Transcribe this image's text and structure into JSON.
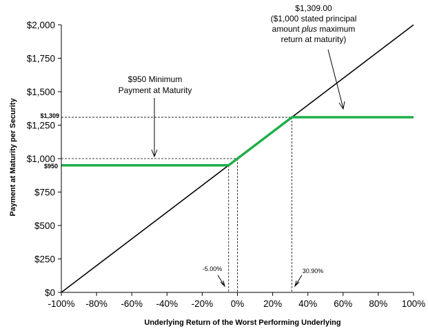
{
  "chart_data": {
    "type": "line",
    "xlabel": "Underlying Return of the Worst Performing Underlying",
    "ylabel": "Payment at Maturity per Security",
    "xlim": [
      -100,
      100
    ],
    "ylim": [
      0,
      2000
    ],
    "x_ticks": [
      -100,
      -80,
      -60,
      -40,
      -20,
      0,
      20,
      40,
      60,
      80,
      100
    ],
    "x_tick_labels": [
      "-100%",
      "-80%",
      "-60%",
      "-40%",
      "-20%",
      "0%",
      "20%",
      "40%",
      "60%",
      "80%",
      "100%"
    ],
    "y_ticks": [
      0,
      250,
      500,
      750,
      1000,
      1250,
      1500,
      1750,
      2000
    ],
    "y_tick_labels": [
      "$0",
      "$250",
      "$500",
      "$750",
      "$1,000",
      "$1,250",
      "$1,500",
      "$1,750",
      "$2,000"
    ],
    "series": [
      {
        "color": "#000000",
        "points": [
          [
            -100,
            0
          ],
          [
            100,
            2000
          ]
        ]
      },
      {
        "color": "#1fae48",
        "points": [
          [
            -100,
            950
          ],
          [
            -5,
            950
          ],
          [
            30.9,
            1309
          ],
          [
            100,
            1309
          ]
        ]
      }
    ],
    "reference_lines": {
      "horizontal": [
        {
          "y": 1000,
          "x_to": 0
        },
        {
          "y": 1309,
          "x_to": 30.9
        }
      ],
      "vertical": [
        {
          "x": -5,
          "y_to": 950
        },
        {
          "x": 0,
          "y_to": 1000
        },
        {
          "x": 30.9,
          "y_to": 1309
        }
      ]
    },
    "y_markers": [
      {
        "value": 1309,
        "label": "$1,309"
      },
      {
        "value": 950,
        "label": "$950"
      }
    ],
    "annotations": {
      "minimum": {
        "lines": [
          "$950 Minimum",
          "Payment at Maturity"
        ]
      },
      "maximum": {
        "lines": [
          "$1,309.00",
          "($1,000 stated principal",
          "amount ",
          "plus",
          " maximum",
          "return at maturity)"
        ]
      },
      "lower_threshold": {
        "label": "-5.00%",
        "x": -5
      },
      "upper_threshold": {
        "label": "30.90%",
        "x": 30.9
      }
    }
  }
}
